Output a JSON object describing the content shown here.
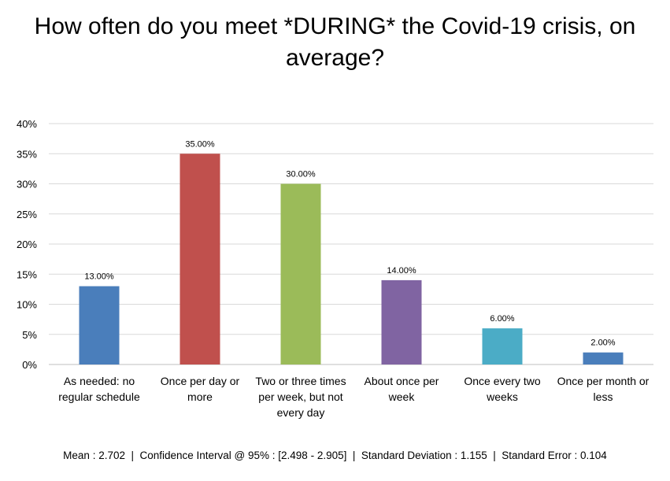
{
  "chart_data": {
    "type": "bar",
    "title": "How often do you meet *DURING* the Covid-19 crisis, on average?",
    "categories": [
      "As needed: no regular schedule",
      "Once per day or more",
      "Two or three times per week, but not every day",
      "About once per week",
      "Once every two weeks",
      "Once per month or less"
    ],
    "values": [
      13,
      35,
      30,
      14,
      6,
      2
    ],
    "data_labels": [
      "13.00%",
      "35.00%",
      "30.00%",
      "14.00%",
      "6.00%",
      "2.00%"
    ],
    "colors": [
      "#4a7ebb",
      "#c0504d",
      "#9bbb59",
      "#8064a2",
      "#4bacc6",
      "#4a7ebb"
    ],
    "ylim": [
      0,
      40
    ],
    "yticks": [
      0,
      5,
      10,
      15,
      20,
      25,
      30,
      35,
      40
    ],
    "ytick_labels": [
      "0%",
      "5%",
      "10%",
      "15%",
      "20%",
      "25%",
      "30%",
      "35%",
      "40%"
    ],
    "grid": true,
    "legend": "none"
  },
  "stats_line": "Mean : 2.702  |  Confidence Interval @ 95% : [2.498 - 2.905]  |  Standard Deviation : 1.155  |  Standard Error : 0.104"
}
